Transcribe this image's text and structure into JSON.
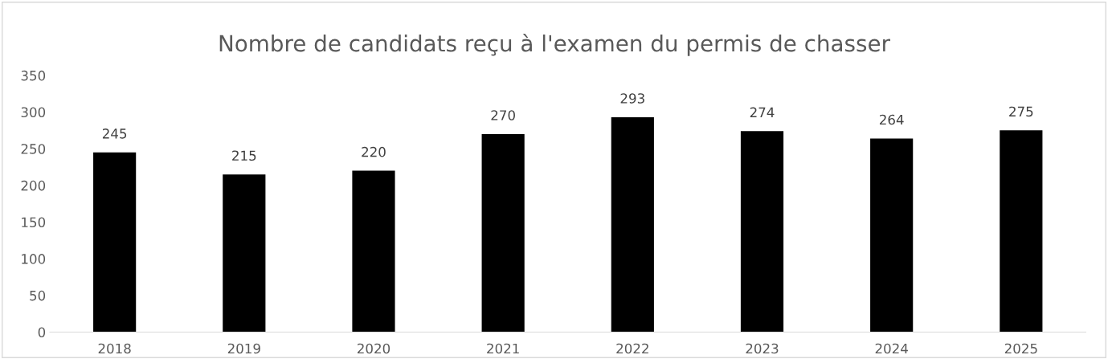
{
  "chart_data": {
    "type": "bar",
    "title": "Nombre de candidats reçu à l'examen du permis de chasser",
    "categories": [
      "2018",
      "2019",
      "2020",
      "2021",
      "2022",
      "2023",
      "2024",
      "2025"
    ],
    "values": [
      245,
      215,
      220,
      270,
      293,
      274,
      264,
      275
    ],
    "color": "#000000",
    "ylim": [
      0,
      350
    ],
    "yticks": [
      0,
      50,
      100,
      150,
      200,
      250,
      300,
      350
    ],
    "data_labels": true,
    "grid": false,
    "legend": false
  }
}
